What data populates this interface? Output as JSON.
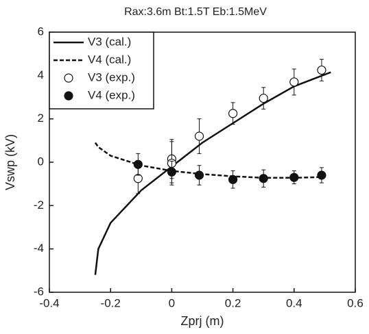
{
  "chart_data": {
    "type": "line",
    "title": "Rax:3.6m Bt:1.5T Eb:1.5MeV",
    "x_label": "Zprj (m)",
    "y_label": "Vswp (kV)",
    "xlim": [
      -0.4,
      0.6
    ],
    "xticks": [
      -0.4,
      -0.2,
      0,
      0.2,
      0.4,
      0.6
    ],
    "ylim": [
      -6,
      6
    ],
    "yticks": [
      -6,
      -4,
      -2,
      0,
      2,
      4,
      6
    ],
    "legend": "upper left",
    "series": [
      {
        "name": "V3 (cal.)",
        "type": "line",
        "style": "solid",
        "color": "#111",
        "x": [
          -0.25,
          -0.24,
          -0.2,
          -0.1,
          0,
          0.1,
          0.2,
          0.3,
          0.4,
          0.52
        ],
        "values": [
          -5.2,
          -4.0,
          -2.8,
          -1.3,
          -0.2,
          0.9,
          1.8,
          2.7,
          3.5,
          4.15
        ]
      },
      {
        "name": "V4 (cal.)",
        "type": "line",
        "style": "dashed",
        "color": "#111",
        "x": [
          -0.25,
          -0.24,
          -0.2,
          -0.1,
          0,
          0.1,
          0.2,
          0.3,
          0.4,
          0.5
        ],
        "values": [
          0.9,
          0.7,
          0.3,
          -0.15,
          -0.4,
          -0.55,
          -0.65,
          -0.72,
          -0.72,
          -0.68
        ]
      },
      {
        "name": "V3 (exp.)",
        "type": "scatter",
        "marker": "open",
        "color": "#111",
        "x": [
          -0.11,
          0,
          0,
          0.09,
          0.2,
          0.3,
          0.4,
          0.49
        ],
        "values": [
          -0.75,
          0.15,
          -0.05,
          1.2,
          2.25,
          2.95,
          3.7,
          4.25
        ],
        "errors": [
          0.7,
          0.9,
          1.0,
          0.8,
          0.5,
          0.5,
          0.6,
          0.5
        ]
      },
      {
        "name": "V4 (exp.)",
        "type": "scatter",
        "marker": "filled",
        "color": "#111",
        "x": [
          -0.11,
          0,
          0.09,
          0.2,
          0.3,
          0.4,
          0.49
        ],
        "values": [
          -0.1,
          -0.45,
          -0.6,
          -0.8,
          -0.75,
          -0.7,
          -0.6
        ],
        "errors": [
          0.5,
          0.5,
          0.45,
          0.4,
          0.4,
          0.3,
          0.35
        ]
      }
    ]
  }
}
